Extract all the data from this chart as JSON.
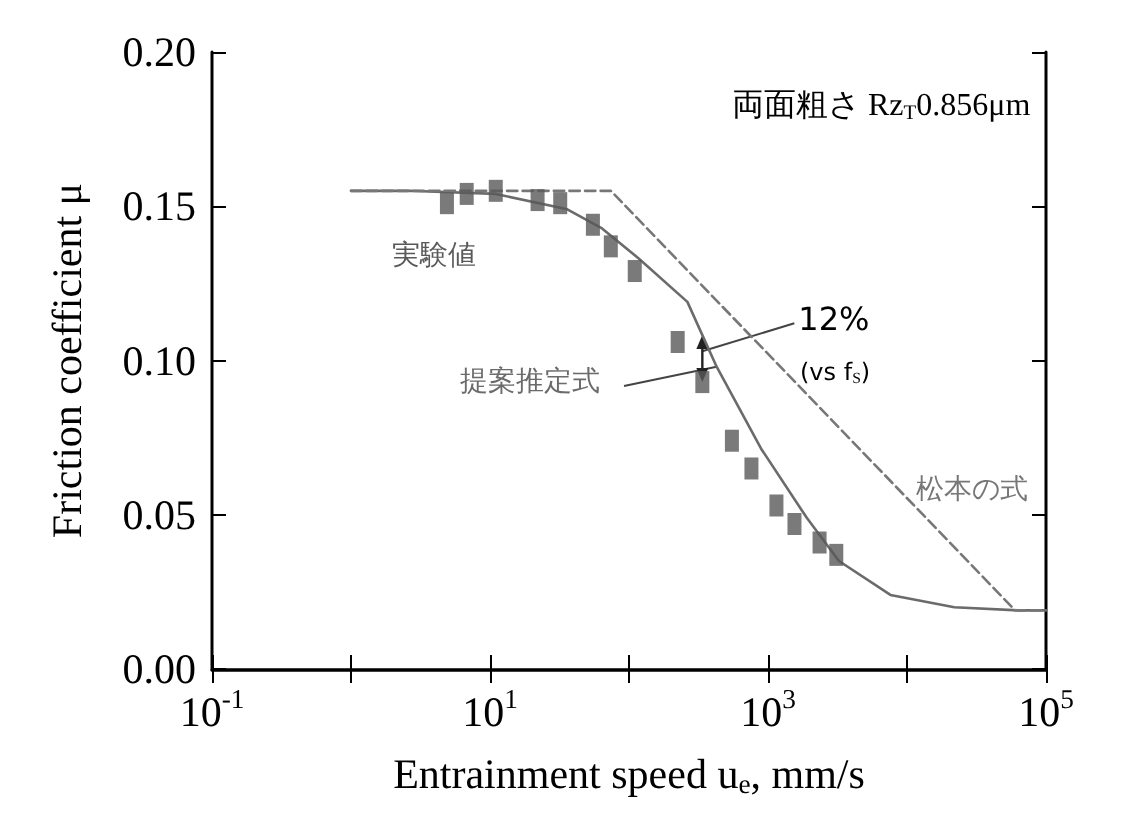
{
  "chart_data": {
    "type": "scatter",
    "xlabel": "Entrainment speed u$_{e}$, mm/s",
    "ylabel": "Friction coefficient μ",
    "log": "x",
    "grid": false,
    "legend": false,
    "xlim": [
      0.1,
      100000
    ],
    "xticks": [
      {
        "value": 0.1,
        "label": "10$^{-1}$"
      },
      {
        "value": 1,
        "label": null
      },
      {
        "value": 10,
        "label": "10$^{1}$"
      },
      {
        "value": 100,
        "label": null
      },
      {
        "value": 1000,
        "label": "10$^{3}$"
      },
      {
        "value": 10000,
        "label": null
      },
      {
        "value": 100000,
        "label": "10$^{5}$"
      }
    ],
    "ylim": [
      0,
      0.2
    ],
    "yticks": [
      {
        "value": 0,
        "label": "0.00"
      },
      {
        "value": 0.05,
        "label": "0.05"
      },
      {
        "value": 0.1,
        "label": "0.10"
      },
      {
        "value": 0.15,
        "label": "0.15"
      },
      {
        "value": 0.2,
        "label": "0.20"
      }
    ],
    "annotations": [
      "両面粗さ Rz$_{T}$0.856μm",
      {
        "text": "12%",
        "x": 337,
        "y": 0.103
      },
      "(vs f$_{S}$)"
    ],
    "series": [
      {
        "name": "実験値",
        "type": "scatter",
        "color": "#595959",
        "marker": "square",
        "x": [
          4.9,
          6.8,
          11,
          22,
          32,
          55,
          74,
          110,
          224,
          337,
          550,
          760,
          1150,
          1550,
          2350,
          3100
        ],
        "values": [
          0.151,
          0.154,
          0.155,
          0.152,
          0.151,
          0.144,
          0.137,
          0.129,
          0.106,
          0.093,
          0.074,
          0.065,
          0.053,
          0.047,
          0.041,
          0.037
        ]
      },
      {
        "name": "提案推定式",
        "type": "line",
        "color": "#6b6b6b",
        "marker": "none",
        "line_style": "solid",
        "x": [
          1,
          2.6,
          11,
          36,
          63,
          118,
          263,
          427,
          890,
          1900,
          3240,
          7600,
          21900,
          63000,
          100000
        ],
        "values": [
          0.155,
          0.155,
          0.154,
          0.149,
          0.143,
          0.133,
          0.119,
          0.098,
          0.0715,
          0.049,
          0.035,
          0.024,
          0.02,
          0.019,
          0.019
        ]
      },
      {
        "name": "松本の式",
        "type": "line",
        "color": "#777777",
        "marker": "none",
        "line_style": "dashed",
        "x": [
          1,
          74,
          60000,
          100000
        ],
        "values": [
          0.155,
          0.155,
          0.019,
          0.019
        ]
      }
    ]
  }
}
